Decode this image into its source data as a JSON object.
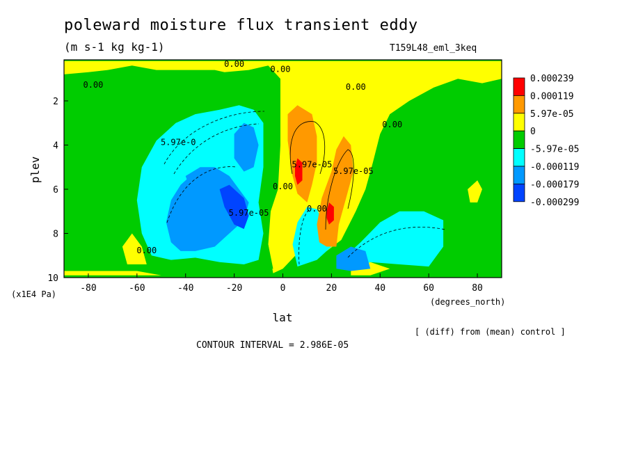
{
  "title": "poleward moisture flux transient eddy",
  "units": "(m s-1 kg kg-1)",
  "run_id": "T159L48_eml_3keq",
  "footnote": "[ (diff) from (mean) control ]",
  "contour_interval": "CONTOUR INTERVAL = 2.986E-05",
  "chart_data": {
    "type": "heatmap",
    "xlabel": "lat",
    "ylabel": "plev",
    "x_unit_label": "(degrees_north)",
    "y_unit_label": "(x1E4 Pa)",
    "xlim": [
      -90,
      90
    ],
    "ylim": [
      10,
      0.2
    ],
    "x_ticks": [
      -80,
      -60,
      -40,
      -20,
      0,
      20,
      40,
      60,
      80
    ],
    "x_tick_labels": [
      "-80",
      "-60",
      "-40",
      "-20",
      "0",
      "20",
      "40",
      "60",
      "80"
    ],
    "y_ticks": [
      2,
      4,
      6,
      8,
      10
    ],
    "y_tick_labels": [
      "2",
      "4",
      "6",
      "8",
      "10"
    ],
    "background_color": "#00cc00",
    "legend": {
      "position": "right",
      "labels": [
        "0.000239",
        "0.000119",
        "5.97e-05",
        "0",
        "-5.97e-05",
        "-0.000119",
        "-0.000179",
        "-0.000299"
      ],
      "colors": [
        "#ff0000",
        "#ff9900",
        "#ffff00",
        "#00cc00",
        "#00ffff",
        "#0099ff",
        "#0044ff"
      ]
    },
    "regions": [
      {
        "color": "#ffff00",
        "points": [
          [
            -90,
            0.2
          ],
          [
            90,
            0.2
          ],
          [
            90,
            1.0
          ],
          [
            82,
            1.2
          ],
          [
            72,
            1.0
          ],
          [
            62,
            1.4
          ],
          [
            52,
            2.0
          ],
          [
            44,
            2.6
          ],
          [
            40,
            3.5
          ],
          [
            37,
            4.8
          ],
          [
            34,
            6.0
          ],
          [
            30,
            7.0
          ],
          [
            24,
            8.3
          ],
          [
            18,
            8.8
          ],
          [
            12,
            8.8
          ],
          [
            6,
            8.9
          ],
          [
            0,
            9.6
          ],
          [
            -4,
            9.8
          ],
          [
            -6,
            8.5
          ],
          [
            -5,
            7.0
          ],
          [
            -2,
            6.0
          ],
          [
            -1,
            4.0
          ],
          [
            -1,
            1.0
          ],
          [
            -6,
            0.4
          ],
          [
            -14,
            0.6
          ],
          [
            -24,
            0.7
          ],
          [
            -28,
            0.6
          ],
          [
            -40,
            0.6
          ],
          [
            -52,
            0.6
          ],
          [
            -62,
            0.4
          ],
          [
            -72,
            0.6
          ],
          [
            -80,
            0.7
          ],
          [
            -90,
            0.8
          ]
        ]
      },
      {
        "color": "#00cc00",
        "points": [
          [
            -80,
            1.2
          ],
          [
            -66,
            0.9
          ],
          [
            -52,
            0.9
          ],
          [
            -40,
            1.0
          ],
          [
            -34,
            1.2
          ],
          [
            -30,
            1.8
          ],
          [
            -24,
            2.2
          ],
          [
            -18,
            2.0
          ],
          [
            -10,
            2.2
          ],
          [
            -6,
            2.4
          ],
          [
            -6,
            8.5
          ],
          [
            -4,
            9.6
          ],
          [
            -20,
            9.6
          ],
          [
            -40,
            9.6
          ],
          [
            -58,
            9.6
          ],
          [
            -72,
            9.6
          ],
          [
            -80,
            9.6
          ]
        ]
      },
      {
        "color": "#00cc00",
        "points": [
          [
            90,
            9.9
          ],
          [
            90,
            1.4
          ],
          [
            82,
            1.6
          ],
          [
            72,
            1.4
          ],
          [
            64,
            1.8
          ],
          [
            56,
            2.4
          ],
          [
            48,
            3.0
          ],
          [
            44,
            4.0
          ],
          [
            41,
            5.2
          ],
          [
            38,
            6.5
          ],
          [
            34,
            7.5
          ],
          [
            26,
            8.6
          ],
          [
            20,
            9.1
          ],
          [
            14,
            9.3
          ],
          [
            8,
            9.5
          ],
          [
            2,
            9.9
          ]
        ]
      },
      {
        "color": "#ffff00",
        "points": [
          [
            76,
            6.0
          ],
          [
            80,
            5.6
          ],
          [
            82,
            6.0
          ],
          [
            80,
            6.6
          ],
          [
            77,
            6.6
          ]
        ]
      },
      {
        "color": "#ffff00",
        "points": [
          [
            -62,
            8.0
          ],
          [
            -58,
            8.6
          ],
          [
            -56,
            9.4
          ],
          [
            -64,
            9.4
          ],
          [
            -66,
            8.6
          ]
        ]
      },
      {
        "color": "#ffff00",
        "points": [
          [
            -30,
            8.3
          ],
          [
            -26,
            8.5
          ],
          [
            -28,
            9.0
          ],
          [
            -32,
            8.8
          ]
        ]
      },
      {
        "color": "#ffff00",
        "points": [
          [
            28,
            9.5
          ],
          [
            36,
            9.3
          ],
          [
            44,
            9.6
          ],
          [
            36,
            9.9
          ],
          [
            28,
            9.9
          ]
        ]
      },
      {
        "color": "#ffff00",
        "points": [
          [
            -90,
            9.7
          ],
          [
            -60,
            9.7
          ],
          [
            -50,
            9.9
          ],
          [
            -90,
            9.9
          ]
        ]
      },
      {
        "color": "#00ffff",
        "points": [
          [
            -58,
            5.0
          ],
          [
            -52,
            3.8
          ],
          [
            -44,
            3.0
          ],
          [
            -36,
            2.6
          ],
          [
            -26,
            2.4
          ],
          [
            -18,
            2.2
          ],
          [
            -12,
            2.4
          ],
          [
            -8,
            3.0
          ],
          [
            -8,
            5.0
          ],
          [
            -10,
            6.6
          ],
          [
            -8,
            8.0
          ],
          [
            -10,
            9.2
          ],
          [
            -16,
            9.4
          ],
          [
            -26,
            9.3
          ],
          [
            -36,
            9.1
          ],
          [
            -46,
            9.2
          ],
          [
            -54,
            9.0
          ],
          [
            -58,
            8.0
          ],
          [
            -60,
            6.5
          ]
        ]
      },
      {
        "color": "#00ffff",
        "points": [
          [
            6,
            9.5
          ],
          [
            4,
            8.5
          ],
          [
            6,
            7.5
          ],
          [
            10,
            6.8
          ],
          [
            14,
            6.9
          ],
          [
            18,
            7.8
          ],
          [
            20,
            8.6
          ],
          [
            14,
            9.2
          ]
        ]
      },
      {
        "color": "#00ffff",
        "points": [
          [
            22,
            9.5
          ],
          [
            26,
            9.0
          ],
          [
            32,
            8.4
          ],
          [
            40,
            7.5
          ],
          [
            48,
            7.0
          ],
          [
            58,
            7.0
          ],
          [
            66,
            7.4
          ],
          [
            66,
            8.6
          ],
          [
            60,
            9.5
          ],
          [
            48,
            9.4
          ],
          [
            36,
            9.3
          ],
          [
            28,
            9.6
          ]
        ]
      },
      {
        "color": "#0099ff",
        "points": [
          [
            -48,
            7.5
          ],
          [
            -46,
            6.5
          ],
          [
            -42,
            5.8
          ],
          [
            -36,
            5.2
          ],
          [
            -28,
            5.0
          ],
          [
            -22,
            5.4
          ],
          [
            -18,
            6.0
          ],
          [
            -14,
            6.6
          ],
          [
            -16,
            7.4
          ],
          [
            -20,
            7.8
          ],
          [
            -28,
            8.6
          ],
          [
            -36,
            8.8
          ],
          [
            -42,
            8.8
          ],
          [
            -46,
            8.4
          ]
        ]
      },
      {
        "color": "#0099ff",
        "points": [
          [
            -20,
            3.5
          ],
          [
            -16,
            3.0
          ],
          [
            -12,
            3.2
          ],
          [
            -10,
            4.0
          ],
          [
            -12,
            5.0
          ],
          [
            -16,
            5.2
          ],
          [
            -20,
            4.6
          ]
        ]
      },
      {
        "color": "#0099ff",
        "points": [
          [
            -40,
            5.4
          ],
          [
            -34,
            5.0
          ],
          [
            -28,
            5.0
          ],
          [
            -26,
            5.4
          ],
          [
            -32,
            6.0
          ],
          [
            -38,
            6.0
          ]
        ]
      },
      {
        "color": "#0099ff",
        "points": [
          [
            22,
            9.0
          ],
          [
            28,
            8.6
          ],
          [
            34,
            8.8
          ],
          [
            36,
            9.6
          ],
          [
            28,
            9.7
          ],
          [
            22,
            9.6
          ]
        ]
      },
      {
        "color": "#0044ff",
        "points": [
          [
            -26,
            6.0
          ],
          [
            -22,
            5.8
          ],
          [
            -16,
            6.4
          ],
          [
            -14,
            7.2
          ],
          [
            -16,
            7.8
          ],
          [
            -20,
            7.6
          ],
          [
            -24,
            6.8
          ]
        ]
      },
      {
        "color": "#ff9900",
        "points": [
          [
            2,
            3.8
          ],
          [
            2,
            2.6
          ],
          [
            6,
            2.2
          ],
          [
            12,
            2.6
          ],
          [
            14,
            3.6
          ],
          [
            14,
            4.8
          ],
          [
            12,
            5.8
          ],
          [
            10,
            6.6
          ],
          [
            6,
            6.2
          ],
          [
            4,
            5.4
          ]
        ]
      },
      {
        "color": "#ff9900",
        "points": [
          [
            14,
            7.6
          ],
          [
            16,
            6.4
          ],
          [
            20,
            5.2
          ],
          [
            22,
            4.2
          ],
          [
            25,
            3.6
          ],
          [
            28,
            4.0
          ],
          [
            29,
            5.2
          ],
          [
            26,
            6.4
          ],
          [
            23,
            7.6
          ],
          [
            22,
            8.6
          ],
          [
            18,
            8.6
          ],
          [
            15,
            8.4
          ]
        ]
      },
      {
        "color": "#ff0000",
        "points": [
          [
            5,
            5.0
          ],
          [
            6,
            4.6
          ],
          [
            8,
            4.8
          ],
          [
            8,
            5.6
          ],
          [
            6,
            5.8
          ],
          [
            5,
            5.4
          ]
        ]
      },
      {
        "color": "#ff0000",
        "points": [
          [
            18,
            7.0
          ],
          [
            19,
            6.6
          ],
          [
            21,
            6.8
          ],
          [
            21,
            7.4
          ],
          [
            19,
            7.6
          ],
          [
            18,
            7.3
          ]
        ]
      }
    ],
    "contour_labels": [
      {
        "text": "0.00",
        "lat": -20,
        "plev": 0.45
      },
      {
        "text": "0.00",
        "lat": -1,
        "plev": 0.7
      },
      {
        "text": "0.00",
        "lat": -78,
        "plev": 1.4
      },
      {
        "text": "0.00",
        "lat": 30,
        "plev": 1.5
      },
      {
        "text": "0.00",
        "lat": 45,
        "plev": 3.2
      },
      {
        "text": "5.97e-0",
        "lat": -43,
        "plev": 4.0
      },
      {
        "text": "5.97e-05",
        "lat": 12,
        "plev": 5.0
      },
      {
        "text": "5.97e-05",
        "lat": 29,
        "plev": 5.3
      },
      {
        "text": "5.97e-05",
        "lat": -14,
        "plev": 7.2
      },
      {
        "text": "0.00",
        "lat": 0,
        "plev": 6.0
      },
      {
        "text": "0.00",
        "lat": 14,
        "plev": 7.0
      },
      {
        "text": "0.00",
        "lat": -56,
        "plev": 8.9
      }
    ]
  }
}
